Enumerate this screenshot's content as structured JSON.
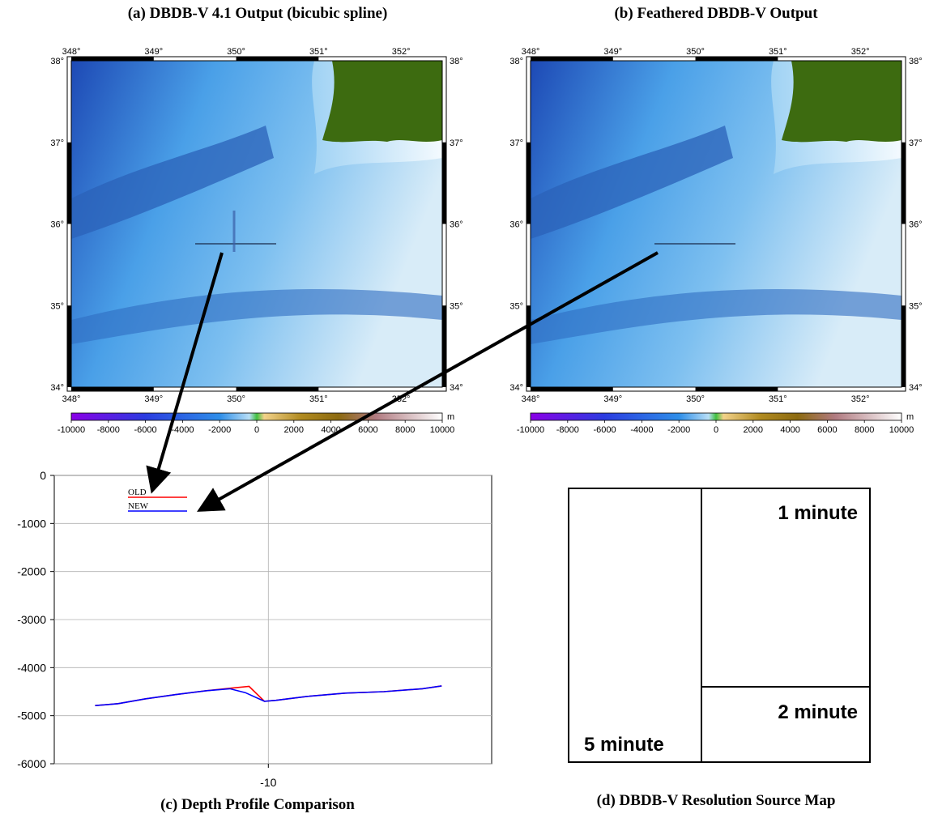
{
  "colors": {
    "ocean_deep": "#1d49b5",
    "ocean_mid": "#4aa0e8",
    "ocean_shallow": "#d8ecf8",
    "land": "#3d6b10",
    "old_line": "#ff0000",
    "new_line": "#0000ff"
  },
  "panel_a": {
    "title": "(a) DBDB-V 4.1 Output (bicubic spline)",
    "lon_ticks": [
      "348°",
      "349°",
      "350°",
      "351°",
      "352°"
    ],
    "lat_ticks": [
      "38°",
      "37°",
      "36°",
      "35°",
      "34°"
    ],
    "colorbar_ticks": [
      "-10000",
      "-8000",
      "-6000",
      "-4000",
      "-2000",
      "0",
      "2000",
      "4000",
      "6000",
      "8000",
      "10000"
    ],
    "colorbar_unit": "m"
  },
  "panel_b": {
    "title": "(b) Feathered DBDB-V Output",
    "lon_ticks": [
      "348°",
      "349°",
      "350°",
      "351°",
      "352°"
    ],
    "lat_ticks": [
      "38°",
      "37°",
      "36°",
      "35°",
      "34°"
    ],
    "colorbar_ticks": [
      "-10000",
      "-8000",
      "-6000",
      "-4000",
      "-2000",
      "0",
      "2000",
      "4000",
      "6000",
      "8000",
      "10000"
    ],
    "colorbar_unit": "m"
  },
  "chart_data": {
    "type": "line",
    "title": "(c) Depth Profile Comparison",
    "xlabel": "",
    "ylabel": "",
    "ylim": [
      -6000,
      0
    ],
    "y_ticks": [
      "0",
      "-1000",
      "-2000",
      "-3000",
      "-4000",
      "-5000",
      "-6000"
    ],
    "x_ticks": [
      "-10"
    ],
    "grid": true,
    "legend_position": "top-left",
    "series": [
      {
        "name": "OLD",
        "color": "#ff0000",
        "points": [
          [
            -12.25,
            -4790
          ],
          [
            -11.95,
            -4750
          ],
          [
            -11.6,
            -4650
          ],
          [
            -11.2,
            -4560
          ],
          [
            -10.8,
            -4480
          ],
          [
            -10.5,
            -4430
          ],
          [
            -10.25,
            -4390
          ],
          [
            -10.05,
            -4700
          ],
          [
            -9.9,
            -4680
          ],
          [
            -9.5,
            -4600
          ],
          [
            -9.0,
            -4530
          ],
          [
            -8.5,
            -4500
          ],
          [
            -8.0,
            -4440
          ],
          [
            -7.75,
            -4380
          ]
        ]
      },
      {
        "name": "NEW",
        "color": "#0000ff",
        "points": [
          [
            -12.25,
            -4790
          ],
          [
            -11.95,
            -4750
          ],
          [
            -11.6,
            -4650
          ],
          [
            -11.2,
            -4560
          ],
          [
            -10.8,
            -4480
          ],
          [
            -10.5,
            -4440
          ],
          [
            -10.3,
            -4520
          ],
          [
            -10.05,
            -4700
          ],
          [
            -9.9,
            -4680
          ],
          [
            -9.5,
            -4600
          ],
          [
            -9.0,
            -4530
          ],
          [
            -8.5,
            -4500
          ],
          [
            -8.0,
            -4440
          ],
          [
            -7.75,
            -4380
          ]
        ]
      }
    ]
  },
  "panel_d": {
    "title": "(d) DBDB-V Resolution Source Map",
    "label_1": "1 minute",
    "label_2": "2 minute",
    "label_5": "5 minute"
  }
}
